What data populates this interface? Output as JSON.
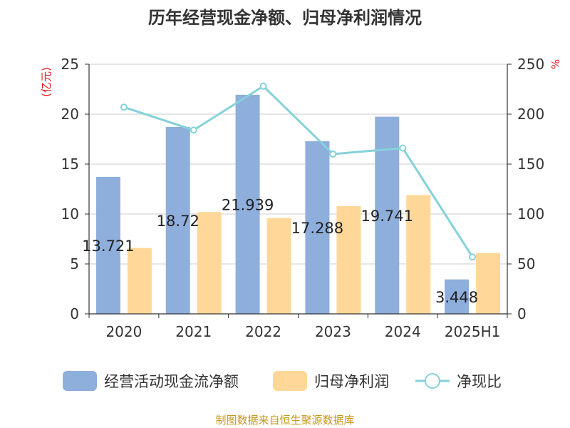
{
  "chart_data": {
    "type": "bar",
    "title": "历年经营现金净额、归母净利润情况",
    "categories": [
      "2020",
      "2021",
      "2022",
      "2023",
      "2024",
      "2025H1"
    ],
    "series": [
      {
        "name": "经营活动现金流净额",
        "axis": "left",
        "type": "bar",
        "color": "#8eaedb",
        "values": [
          13.721,
          18.72,
          21.939,
          17.288,
          19.741,
          3.448
        ],
        "labels": [
          "13.721",
          "18.72",
          "21.939",
          "17.288",
          "19.741",
          "3.448"
        ]
      },
      {
        "name": "归母净利润",
        "axis": "left",
        "type": "bar",
        "color": "#ffd899",
        "values": [
          6.6,
          10.2,
          9.6,
          10.8,
          11.9,
          6.1
        ]
      },
      {
        "name": "净现比",
        "axis": "right",
        "type": "line",
        "color": "#85d1d9",
        "values": [
          207,
          184,
          228,
          160,
          166,
          57
        ]
      }
    ],
    "y_left": {
      "unit": "(亿元)",
      "ylim": [
        0,
        25
      ],
      "ticks": [
        "0",
        "5",
        "10",
        "15",
        "20",
        "25"
      ]
    },
    "y_right": {
      "unit": "%",
      "ylim": [
        0,
        250
      ],
      "ticks": [
        "0",
        "50",
        "100",
        "150",
        "200",
        "250"
      ]
    },
    "grid": true,
    "legend_position": "bottom"
  },
  "source_text": "制图数据来自恒生聚源数据库"
}
